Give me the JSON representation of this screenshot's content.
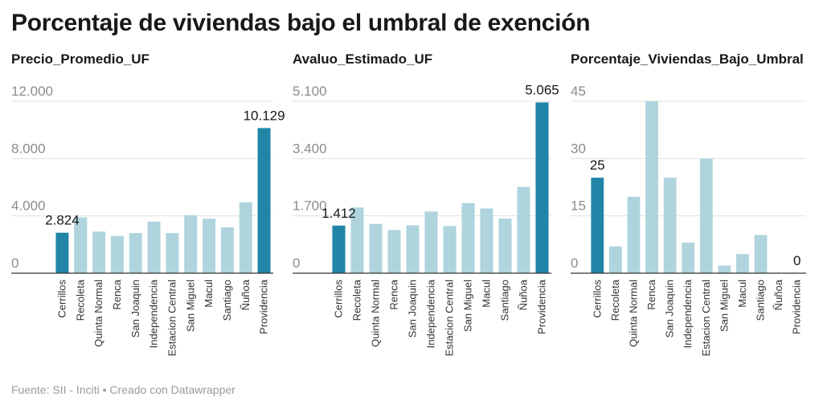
{
  "title": "Porcentaje de viviendas bajo el umbral de exención",
  "footer": "Fuente: SII - Inciti • Creado con Datawrapper",
  "colors": {
    "highlight": "#2085a6",
    "bar": "#afd4de",
    "grid": "#e0e0e0",
    "baseline": "#333333",
    "tick": "#8c8c8c"
  },
  "chart_data": [
    {
      "type": "bar",
      "title": "Precio_Promedio_UF",
      "categories": [
        "Cerrillos",
        "Recoleta",
        "Quinta Normal",
        "Renca",
        "San Joaquin",
        "Independencia",
        "Estacion Central",
        "San Miguel",
        "Macul",
        "Santiago",
        "Ñuñoa",
        "Providencia"
      ],
      "values": [
        2824,
        3900,
        2900,
        2600,
        2800,
        3600,
        2800,
        4050,
        3800,
        3200,
        4950,
        10129
      ],
      "ylim": [
        0,
        12000
      ],
      "yticks": [
        0,
        4000,
        8000,
        12000
      ],
      "ytick_labels": [
        "0",
        "4.000",
        "8.000",
        "12.000"
      ],
      "highlighted": [
        0,
        11
      ],
      "data_labels": [
        {
          "index": 0,
          "text": "2.824"
        },
        {
          "index": 11,
          "text": "10.129"
        }
      ]
    },
    {
      "type": "bar",
      "title": "Avaluo_Estimado_UF",
      "categories": [
        "Cerrillos",
        "Recoleta",
        "Quinta Normal",
        "Renca",
        "San Joaquin",
        "Independencia",
        "Estacion Central",
        "San Miguel",
        "Macul",
        "Santiago",
        "Ñuñoa",
        "Providencia"
      ],
      "values": [
        1412,
        1950,
        1460,
        1280,
        1420,
        1830,
        1400,
        2080,
        1920,
        1620,
        2560,
        5065
      ],
      "ylim": [
        0,
        5100
      ],
      "yticks": [
        0,
        1700,
        3400,
        5100
      ],
      "ytick_labels": [
        "0",
        "1.700",
        "3.400",
        "5.100"
      ],
      "highlighted": [
        0,
        11
      ],
      "data_labels": [
        {
          "index": 0,
          "text": "1.412"
        },
        {
          "index": 11,
          "text": "5.065"
        }
      ]
    },
    {
      "type": "bar",
      "title": "Porcentaje_Viviendas_Bajo_Umbral",
      "categories": [
        "Cerrillos",
        "Recoleta",
        "Quinta Normal",
        "Renca",
        "San Joaquin",
        "Independencia",
        "Estacion Central",
        "San Miguel",
        "Macul",
        "Santiago",
        "Ñuñoa",
        "Providencia"
      ],
      "values": [
        25,
        7,
        20,
        45,
        25,
        8,
        30,
        2,
        5,
        10,
        0,
        0
      ],
      "ylim": [
        0,
        45
      ],
      "yticks": [
        0,
        15,
        30,
        45
      ],
      "ytick_labels": [
        "0",
        "15",
        "30",
        "45"
      ],
      "highlighted": [
        0
      ],
      "data_labels": [
        {
          "index": 0,
          "text": "25"
        },
        {
          "index": 11,
          "text": "0"
        }
      ]
    }
  ]
}
